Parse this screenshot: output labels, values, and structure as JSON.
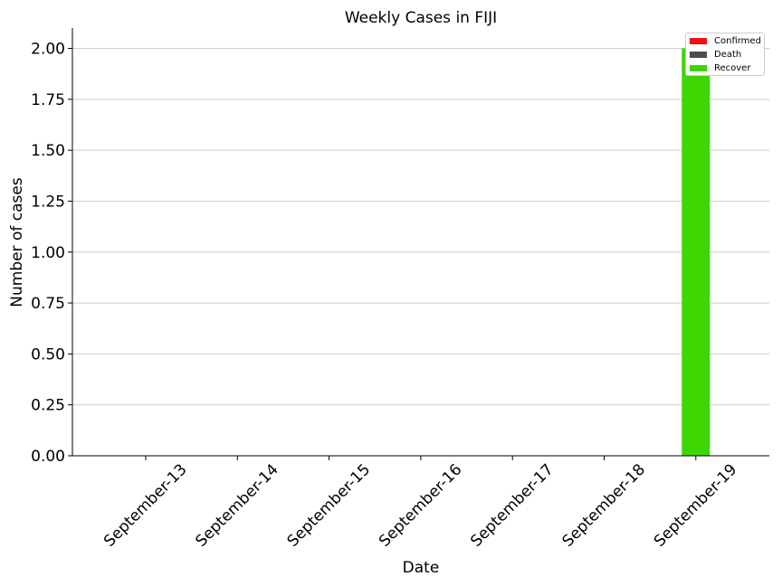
{
  "chart_data": {
    "type": "bar",
    "title": "Weekly Cases in FIJI",
    "xlabel": "Date",
    "ylabel": "Number of cases",
    "categories": [
      "September-13",
      "September-14",
      "September-15",
      "September-16",
      "September-17",
      "September-18",
      "September-19"
    ],
    "series": [
      {
        "name": "Confirmed",
        "color": "#ee1111",
        "values": [
          0,
          0,
          0,
          0,
          0,
          0,
          0
        ]
      },
      {
        "name": "Death",
        "color": "#4d4d4d",
        "values": [
          0,
          0,
          0,
          0,
          0,
          0,
          0
        ]
      },
      {
        "name": "Recover",
        "color": "#3dd600",
        "values": [
          0,
          0,
          0,
          0,
          0,
          0,
          2
        ]
      }
    ],
    "ylim": [
      0,
      2.1
    ],
    "yticks": [
      "0.00",
      "0.25",
      "0.50",
      "0.75",
      "1.00",
      "1.25",
      "1.50",
      "1.75",
      "2.00"
    ],
    "grid": "horizontal",
    "legend": "top-right"
  }
}
